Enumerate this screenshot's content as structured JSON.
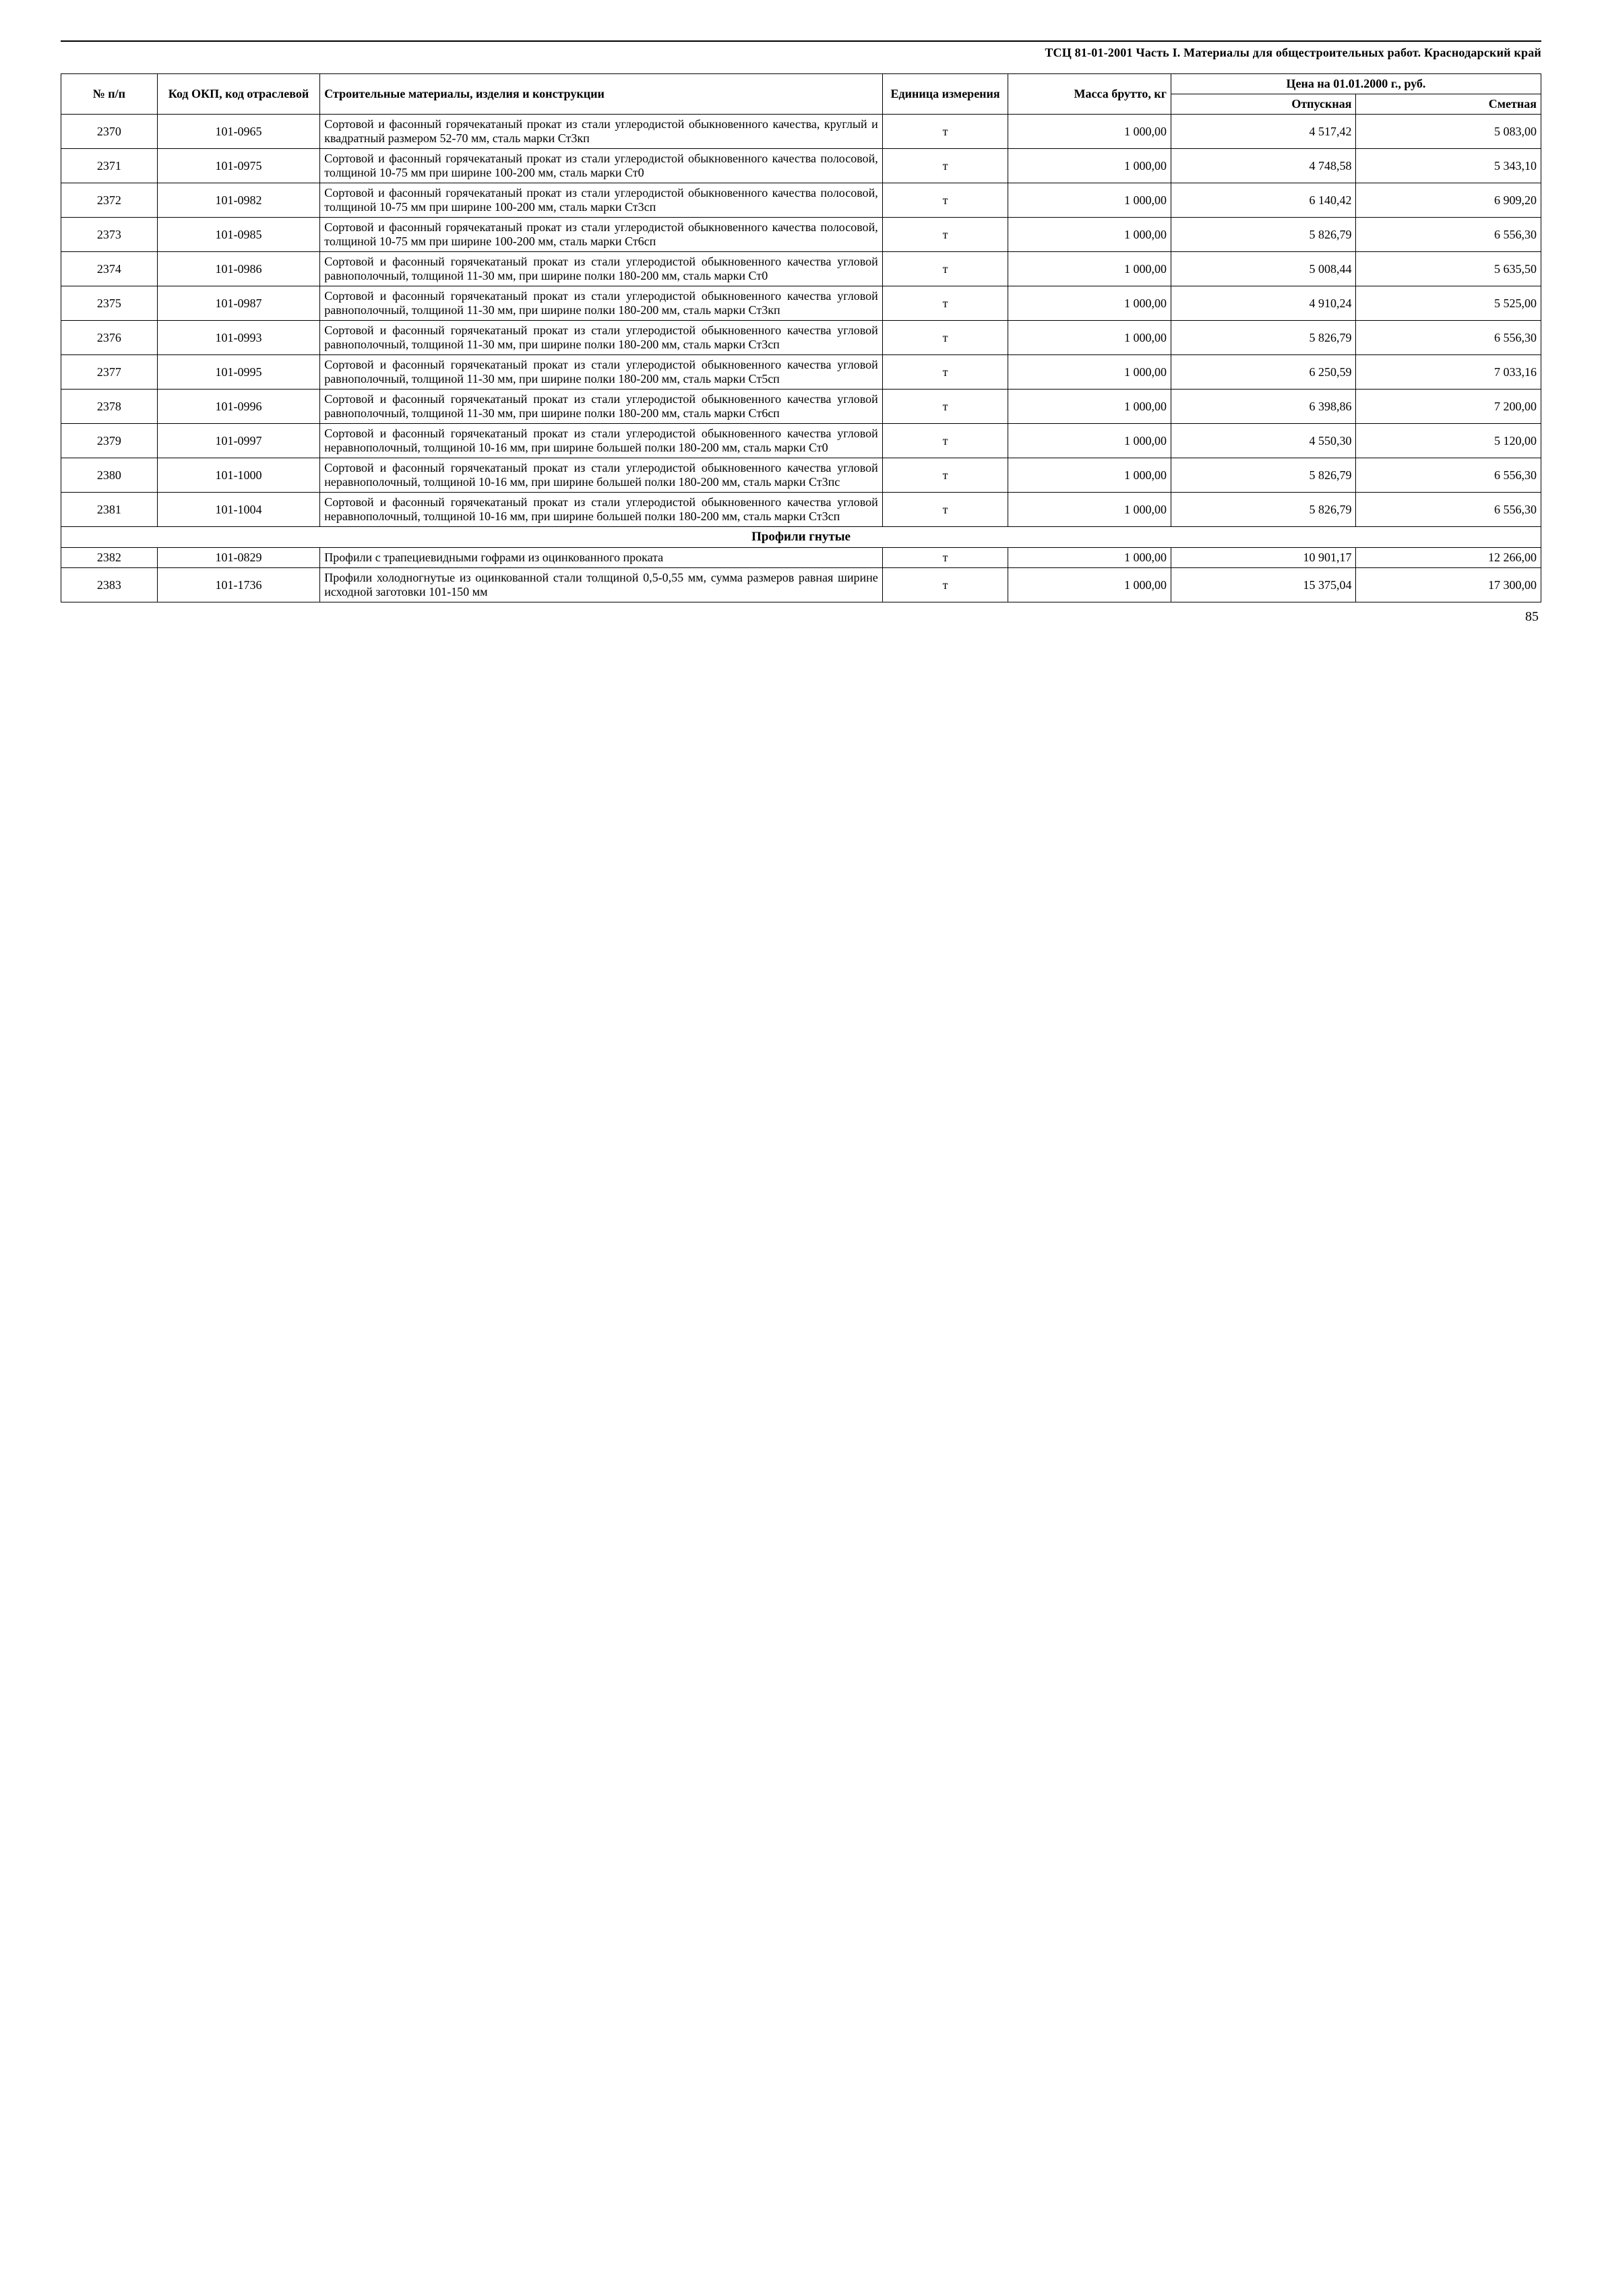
{
  "document_title": "ТСЦ 81-01-2001 Часть I. Материалы для общестроительных работ. Краснодарский край",
  "page_number": "85",
  "table": {
    "columns": {
      "n": "№ п/п",
      "code": "Код ОКП, код отраслевой",
      "desc": "Строительные материалы, изделия и конструкции",
      "unit": "Единица измерения",
      "mass": "Масса брутто, кг",
      "price_header": "Цена на 01.01.2000 г., руб.",
      "price_release": "Отпускная",
      "price_estimate": "Сметная"
    },
    "rows": [
      {
        "n": "2370",
        "code": "101-0965",
        "desc": "Сортовой и фасонный горячекатаный прокат из стали углеродистой обыкновенного качества, круглый и квадратный размером 52-70 мм, сталь марки Ст3кп",
        "unit": "т",
        "mass": "1 000,00",
        "p1": "4 517,42",
        "p2": "5 083,00"
      },
      {
        "n": "2371",
        "code": "101-0975",
        "desc": "Сортовой и фасонный горячекатаный прокат из стали углеродистой обыкновенного качества полосовой, толщиной 10-75 мм при ширине 100-200 мм, сталь марки Ст0",
        "unit": "т",
        "mass": "1 000,00",
        "p1": "4 748,58",
        "p2": "5 343,10"
      },
      {
        "n": "2372",
        "code": "101-0982",
        "desc": "Сортовой и фасонный горячекатаный прокат из стали углеродистой обыкновенного качества полосовой, толщиной 10-75 мм при ширине 100-200 мм, сталь марки Ст3сп",
        "unit": "т",
        "mass": "1 000,00",
        "p1": "6 140,42",
        "p2": "6 909,20"
      },
      {
        "n": "2373",
        "code": "101-0985",
        "desc": "Сортовой и фасонный горячекатаный прокат из стали углеродистой обыкновенного качества полосовой, толщиной 10-75 мм при ширине 100-200 мм, сталь марки Ст6сп",
        "unit": "т",
        "mass": "1 000,00",
        "p1": "5 826,79",
        "p2": "6 556,30"
      },
      {
        "n": "2374",
        "code": "101-0986",
        "desc": "Сортовой и фасонный горячекатаный прокат из стали углеродистой обыкновенного качества угловой равнополочный, толщиной 11-30 мм, при ширине полки 180-200 мм, сталь марки Ст0",
        "unit": "т",
        "mass": "1 000,00",
        "p1": "5 008,44",
        "p2": "5 635,50"
      },
      {
        "n": "2375",
        "code": "101-0987",
        "desc": "Сортовой и фасонный горячекатаный прокат из стали углеродистой обыкновенного качества угловой равнополочный, толщиной 11-30 мм, при ширине полки 180-200 мм, сталь марки Ст3кп",
        "unit": "т",
        "mass": "1 000,00",
        "p1": "4 910,24",
        "p2": "5 525,00"
      },
      {
        "n": "2376",
        "code": "101-0993",
        "desc": "Сортовой и фасонный горячекатаный прокат из стали углеродистой обыкновенного качества угловой равнополочный, толщиной 11-30 мм, при ширине полки 180-200 мм, сталь марки Ст3сп",
        "unit": "т",
        "mass": "1 000,00",
        "p1": "5 826,79",
        "p2": "6 556,30"
      },
      {
        "n": "2377",
        "code": "101-0995",
        "desc": "Сортовой и фасонный горячекатаный прокат из стали углеродистой обыкновенного качества угловой равнополочный, толщиной 11-30 мм, при ширине полки 180-200 мм, сталь марки Ст5сп",
        "unit": "т",
        "mass": "1 000,00",
        "p1": "6 250,59",
        "p2": "7 033,16"
      },
      {
        "n": "2378",
        "code": "101-0996",
        "desc": "Сортовой и фасонный горячекатаный прокат из стали углеродистой обыкновенного качества угловой равнополочный, толщиной 11-30 мм, при ширине полки 180-200 мм, сталь марки Ст6сп",
        "unit": "т",
        "mass": "1 000,00",
        "p1": "6 398,86",
        "p2": "7 200,00"
      },
      {
        "n": "2379",
        "code": "101-0997",
        "desc": "Сортовой и фасонный горячекатаный прокат из стали углеродистой обыкновенного качества угловой неравнополочный, толщиной 10-16 мм, при ширине большей полки 180-200 мм, сталь марки Ст0",
        "unit": "т",
        "mass": "1 000,00",
        "p1": "4 550,30",
        "p2": "5 120,00"
      },
      {
        "n": "2380",
        "code": "101-1000",
        "desc": "Сортовой и фасонный горячекатаный прокат из стали углеродистой обыкновенного качества угловой неравнополочный, толщиной 10-16 мм, при ширине большей полки 180-200 мм, сталь марки Ст3пс",
        "unit": "т",
        "mass": "1 000,00",
        "p1": "5 826,79",
        "p2": "6 556,30"
      },
      {
        "n": "2381",
        "code": "101-1004",
        "desc": "Сортовой и фасонный горячекатаный прокат из стали углеродистой обыкновенного качества угловой неравнополочный, толщиной 10-16 мм, при ширине большей полки 180-200 мм, сталь марки Ст3сп",
        "unit": "т",
        "mass": "1 000,00",
        "p1": "5 826,79",
        "p2": "6 556,30"
      }
    ],
    "section_title": "Профили гнутые",
    "rows2": [
      {
        "n": "2382",
        "code": "101-0829",
        "desc": "Профили с трапециевидными гофрами из оцинкованного проката",
        "unit": "т",
        "mass": "1 000,00",
        "p1": "10 901,17",
        "p2": "12 266,00"
      },
      {
        "n": "2383",
        "code": "101-1736",
        "desc": "Профили холодногнутые из оцинкованной стали толщиной 0,5-0,55 мм, сумма размеров равная ширине исходной заготовки 101-150 мм",
        "unit": "т",
        "mass": "1 000,00",
        "p1": "15 375,04",
        "p2": "17 300,00"
      }
    ]
  }
}
